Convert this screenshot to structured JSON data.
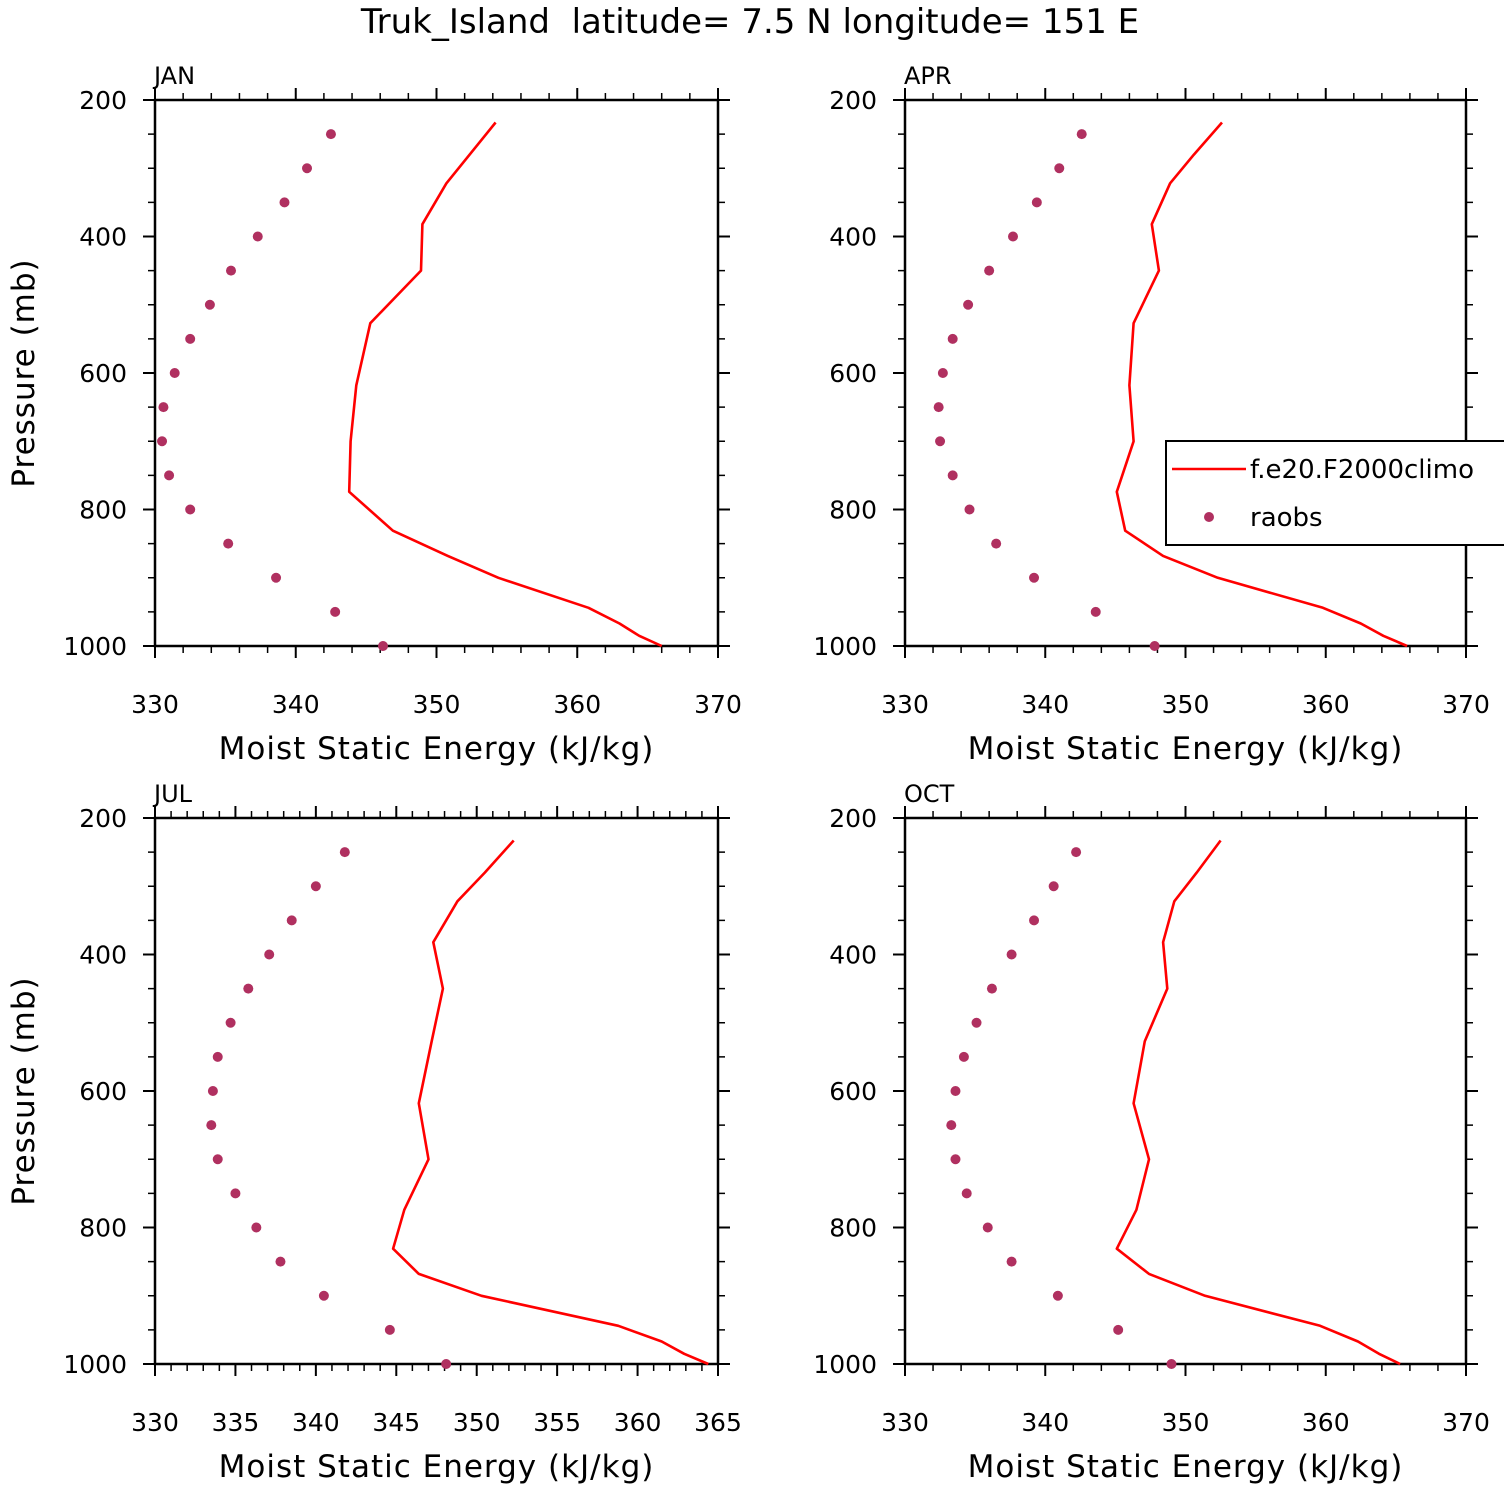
{
  "figure_title": "Truk_Island  latitude= 7.5 N longitude= 151 E",
  "legend": {
    "location": "right-middle",
    "entries": [
      {
        "label": "f.e20.F2000climo",
        "marker": "line",
        "color": "#ff0000"
      },
      {
        "label": "raobs",
        "marker": "dot",
        "color": "#b03060"
      }
    ]
  },
  "colors": {
    "model": "#ff0000",
    "raobs": "#b03060",
    "axes": "#000000"
  },
  "chart_data": [
    {
      "type": "line",
      "title": "JAN",
      "xlabel": "Moist Static Energy (kJ/kg)",
      "ylabel": "Pressure (mb)",
      "xlim": [
        330,
        370
      ],
      "xticks": [
        330,
        340,
        350,
        360,
        370
      ],
      "xminor": 2,
      "ylim": [
        200,
        1000
      ],
      "yticks": [
        200,
        400,
        600,
        800,
        1000
      ],
      "series": [
        {
          "name": "f.e20.F2000climo",
          "style": "line",
          "pressure": [
            233,
            322,
            382,
            450,
            527,
            618,
            700,
            774,
            831,
            868,
            900,
            944,
            967,
            985,
            1000
          ],
          "mse": [
            354.2,
            350.7,
            349.0,
            348.9,
            345.3,
            344.3,
            343.9,
            343.8,
            346.9,
            350.8,
            354.4,
            360.8,
            363.0,
            364.4,
            366.0
          ]
        },
        {
          "name": "raobs",
          "style": "dot",
          "pressure": [
            250,
            300,
            350,
            400,
            450,
            500,
            550,
            600,
            650,
            700,
            750,
            800,
            850,
            900,
            950,
            1000
          ],
          "mse": [
            342.5,
            340.8,
            339.2,
            337.3,
            335.4,
            333.9,
            332.5,
            331.4,
            330.6,
            330.5,
            331.0,
            332.5,
            335.2,
            338.6,
            342.8,
            346.2
          ]
        }
      ]
    },
    {
      "type": "line",
      "title": "APR",
      "xlabel": "Moist Static Energy (kJ/kg)",
      "ylabel": "",
      "xlim": [
        330,
        370
      ],
      "xticks": [
        330,
        340,
        350,
        360,
        370
      ],
      "xminor": 2,
      "ylim": [
        200,
        1000
      ],
      "yticks": [
        200,
        400,
        600,
        800,
        1000
      ],
      "series": [
        {
          "name": "f.e20.F2000climo",
          "style": "line",
          "pressure": [
            233,
            280,
            322,
            382,
            450,
            527,
            618,
            700,
            774,
            831,
            868,
            900,
            944,
            967,
            985,
            1000
          ],
          "mse": [
            352.6,
            350.6,
            348.9,
            347.6,
            348.1,
            346.3,
            346.0,
            346.3,
            345.1,
            345.7,
            348.4,
            352.3,
            359.8,
            362.5,
            364.1,
            365.8
          ]
        },
        {
          "name": "raobs",
          "style": "dot",
          "pressure": [
            250,
            300,
            350,
            400,
            450,
            500,
            550,
            600,
            650,
            700,
            750,
            800,
            850,
            900,
            950,
            1000
          ],
          "mse": [
            342.6,
            341.0,
            339.4,
            337.7,
            336.0,
            334.5,
            333.4,
            332.7,
            332.4,
            332.5,
            333.4,
            334.6,
            336.5,
            339.2,
            343.6,
            347.8
          ]
        }
      ]
    },
    {
      "type": "line",
      "title": "JUL",
      "xlabel": "Moist Static Energy (kJ/kg)",
      "ylabel": "Pressure (mb)",
      "xlim": [
        330,
        365
      ],
      "xticks": [
        330,
        335,
        340,
        345,
        350,
        355,
        360,
        365
      ],
      "xminor": 1,
      "ylim": [
        200,
        1000
      ],
      "yticks": [
        200,
        400,
        600,
        800,
        1000
      ],
      "series": [
        {
          "name": "f.e20.F2000climo",
          "style": "line",
          "pressure": [
            233,
            280,
            322,
            382,
            450,
            527,
            618,
            700,
            774,
            831,
            868,
            900,
            944,
            967,
            985,
            1000
          ],
          "mse": [
            352.3,
            350.5,
            348.8,
            347.3,
            347.9,
            347.2,
            346.4,
            347.0,
            345.5,
            344.8,
            346.4,
            350.3,
            358.8,
            361.5,
            362.9,
            364.4
          ]
        },
        {
          "name": "raobs",
          "style": "dot",
          "pressure": [
            250,
            300,
            350,
            400,
            450,
            500,
            550,
            600,
            650,
            700,
            750,
            800,
            850,
            900,
            950,
            1000
          ],
          "mse": [
            341.8,
            340.0,
            338.5,
            337.1,
            335.8,
            334.7,
            333.9,
            333.6,
            333.5,
            333.9,
            335.0,
            336.3,
            337.8,
            340.5,
            344.6,
            348.1
          ]
        }
      ]
    },
    {
      "type": "line",
      "title": "OCT",
      "xlabel": "Moist Static Energy (kJ/kg)",
      "ylabel": "",
      "xlim": [
        330,
        370
      ],
      "xticks": [
        330,
        340,
        350,
        360,
        370
      ],
      "xminor": 2,
      "ylim": [
        200,
        1000
      ],
      "yticks": [
        200,
        400,
        600,
        800,
        1000
      ],
      "series": [
        {
          "name": "f.e20.F2000climo",
          "style": "line",
          "pressure": [
            233,
            280,
            322,
            382,
            450,
            527,
            618,
            700,
            774,
            831,
            868,
            900,
            944,
            967,
            985,
            1000
          ],
          "mse": [
            352.5,
            350.8,
            349.2,
            348.4,
            348.7,
            347.1,
            346.3,
            347.4,
            346.5,
            345.1,
            347.4,
            351.4,
            359.6,
            362.3,
            363.8,
            365.3
          ]
        },
        {
          "name": "raobs",
          "style": "dot",
          "pressure": [
            250,
            300,
            350,
            400,
            450,
            500,
            550,
            600,
            650,
            700,
            750,
            800,
            850,
            900,
            950,
            1000
          ],
          "mse": [
            342.2,
            340.6,
            339.2,
            337.6,
            336.2,
            335.1,
            334.2,
            333.6,
            333.3,
            333.6,
            334.4,
            335.9,
            337.6,
            340.9,
            345.2,
            349.0
          ]
        }
      ]
    }
  ]
}
